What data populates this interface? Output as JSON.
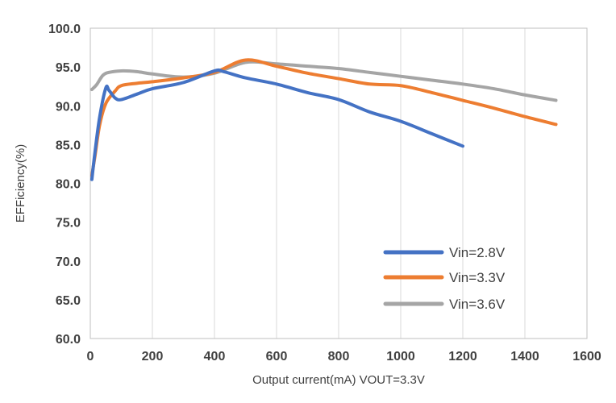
{
  "chart_data": {
    "type": "line",
    "title": "",
    "xlabel": "Output current(mA)  VOUT=3.3V",
    "ylabel": "EFFiciency(%)",
    "xlim": [
      0,
      1600
    ],
    "ylim": [
      60,
      100
    ],
    "x_ticks": [
      "0",
      "200",
      "400",
      "600",
      "800",
      "1000",
      "1200",
      "1400",
      "1600"
    ],
    "y_ticks": [
      "60.0",
      "65.0",
      "70.0",
      "75.0",
      "80.0",
      "85.0",
      "90.0",
      "95.0",
      "100.0"
    ],
    "grid": "vertical",
    "legend_position": "bottom-right",
    "series": [
      {
        "name": "Vin=2.8V",
        "color": "#4472C4",
        "points": [
          [
            5,
            80.5
          ],
          [
            15,
            84.0
          ],
          [
            30,
            88.5
          ],
          [
            50,
            92.3
          ],
          [
            60,
            92.0
          ],
          [
            80,
            91.0
          ],
          [
            100,
            90.8
          ],
          [
            150,
            91.5
          ],
          [
            200,
            92.2
          ],
          [
            300,
            93.0
          ],
          [
            400,
            94.5
          ],
          [
            430,
            94.4
          ],
          [
            500,
            93.6
          ],
          [
            600,
            92.8
          ],
          [
            700,
            91.7
          ],
          [
            800,
            90.8
          ],
          [
            900,
            89.2
          ],
          [
            1000,
            88.0
          ],
          [
            1100,
            86.4
          ],
          [
            1200,
            84.8
          ]
        ]
      },
      {
        "name": "Vin=3.3V",
        "color": "#ED7D31",
        "points": [
          [
            5,
            81.0
          ],
          [
            15,
            83.5
          ],
          [
            30,
            87.5
          ],
          [
            50,
            90.3
          ],
          [
            80,
            91.9
          ],
          [
            100,
            92.6
          ],
          [
            150,
            92.9
          ],
          [
            200,
            93.1
          ],
          [
            300,
            93.6
          ],
          [
            400,
            94.3
          ],
          [
            500,
            95.9
          ],
          [
            600,
            95.1
          ],
          [
            700,
            94.2
          ],
          [
            800,
            93.5
          ],
          [
            900,
            92.8
          ],
          [
            1000,
            92.6
          ],
          [
            1100,
            91.7
          ],
          [
            1200,
            90.7
          ],
          [
            1300,
            89.7
          ],
          [
            1400,
            88.6
          ],
          [
            1500,
            87.6
          ]
        ]
      },
      {
        "name": "Vin=3.6V",
        "color": "#A5A5A5",
        "points": [
          [
            5,
            92.1
          ],
          [
            20,
            92.7
          ],
          [
            40,
            93.9
          ],
          [
            60,
            94.3
          ],
          [
            100,
            94.5
          ],
          [
            150,
            94.4
          ],
          [
            200,
            94.1
          ],
          [
            300,
            93.7
          ],
          [
            400,
            94.2
          ],
          [
            500,
            95.6
          ],
          [
            600,
            95.4
          ],
          [
            700,
            95.1
          ],
          [
            800,
            94.8
          ],
          [
            900,
            94.3
          ],
          [
            1000,
            93.8
          ],
          [
            1100,
            93.3
          ],
          [
            1200,
            92.8
          ],
          [
            1300,
            92.2
          ],
          [
            1400,
            91.4
          ],
          [
            1500,
            90.7
          ]
        ]
      }
    ]
  }
}
